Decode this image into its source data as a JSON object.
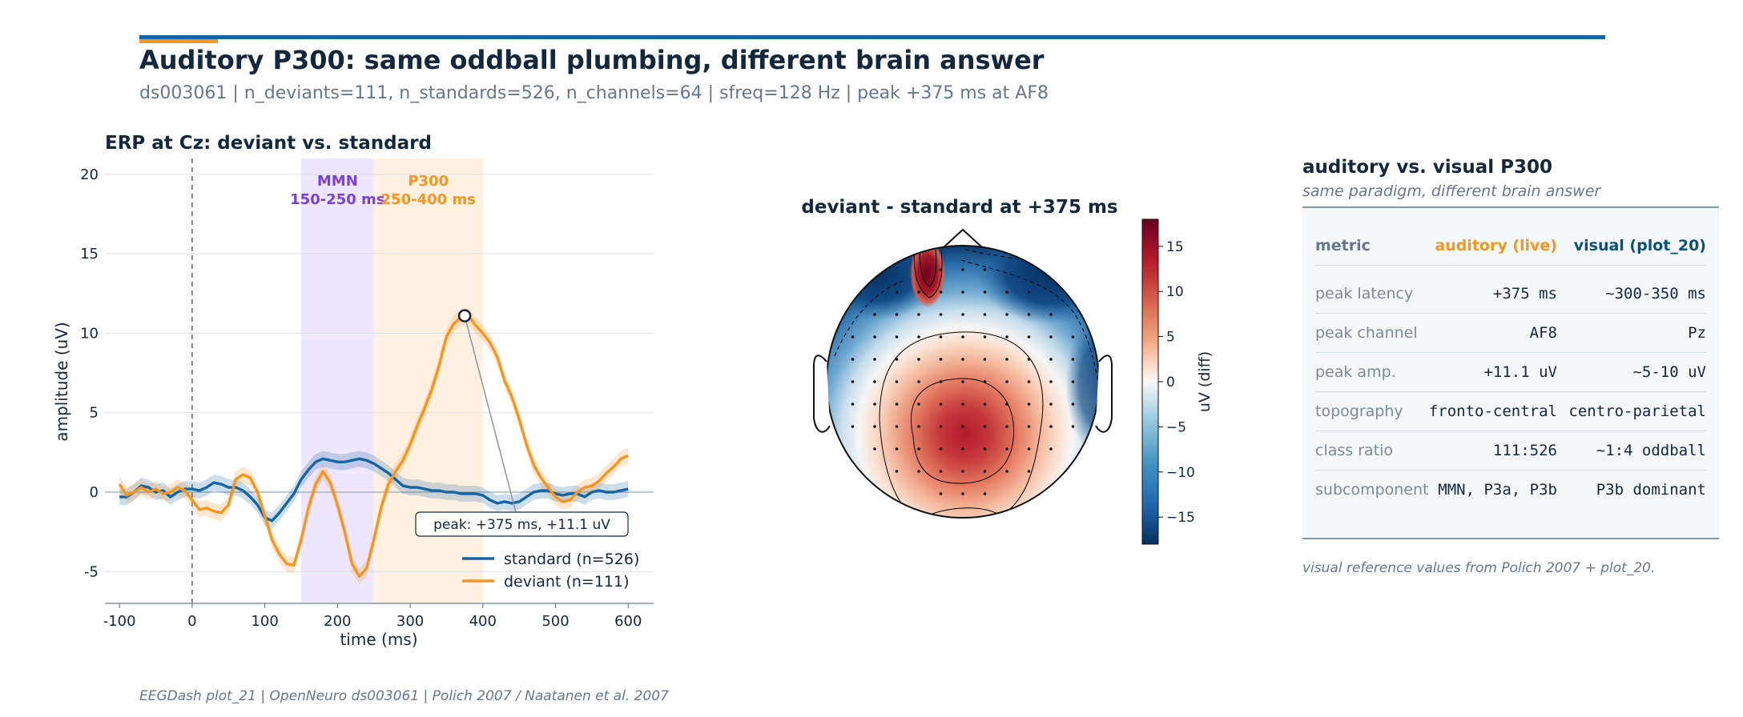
{
  "header": {
    "title": "Auditory P300: same oddball plumbing, different brain answer",
    "subtitle": "ds003061  |  n_deviants=111, n_standards=526, n_channels=64  |  sfreq=128 Hz  |  peak +375 ms at AF8"
  },
  "footer": "EEGDash plot_21 | OpenNeuro ds003061 | Polich 2007 / Naatanen et al. 2007",
  "colors": {
    "standard": "#1565a6",
    "deviant": "#f59623",
    "mmn": "#7a3fe0",
    "accent": "#1565a6"
  },
  "chart_data": [
    {
      "type": "line",
      "title": "ERP at Cz: deviant vs. standard",
      "xlabel": "time (ms)",
      "ylabel": "amplitude (uV)",
      "xlim": [
        -120,
        635
      ],
      "ylim": [
        -7,
        21
      ],
      "xticks": [
        -100,
        0,
        100,
        200,
        300,
        400,
        500,
        600
      ],
      "yticks": [
        -5,
        0,
        5,
        10,
        15,
        20
      ],
      "grid": true,
      "legend": "lower-right",
      "series": [
        {
          "name": "standard (n=526)",
          "x": [
            -100,
            -90,
            -80,
            -70,
            -60,
            -50,
            -40,
            -30,
            -20,
            -10,
            0,
            10,
            20,
            30,
            40,
            50,
            60,
            70,
            80,
            90,
            100,
            110,
            120,
            130,
            140,
            150,
            160,
            170,
            180,
            190,
            200,
            210,
            220,
            230,
            240,
            250,
            260,
            270,
            280,
            290,
            300,
            310,
            320,
            330,
            340,
            350,
            360,
            370,
            380,
            390,
            400,
            410,
            420,
            430,
            440,
            450,
            460,
            470,
            480,
            490,
            500,
            510,
            520,
            530,
            540,
            550,
            560,
            570,
            580,
            590,
            600
          ],
          "y": [
            -0.3,
            -0.3,
            0.0,
            0.4,
            0.3,
            0.0,
            0.1,
            -0.3,
            0.0,
            0.2,
            0.2,
            0.1,
            0.3,
            0.6,
            0.5,
            0.3,
            0.3,
            0.1,
            -0.3,
            -0.8,
            -1.6,
            -1.8,
            -1.3,
            -0.7,
            -0.1,
            0.8,
            1.4,
            1.9,
            2.1,
            2.0,
            1.9,
            1.9,
            2.0,
            2.1,
            2.0,
            1.8,
            1.5,
            1.2,
            0.8,
            0.4,
            0.3,
            0.3,
            0.2,
            0.1,
            0.1,
            0.0,
            0.0,
            -0.1,
            -0.1,
            -0.1,
            -0.2,
            -0.5,
            -0.7,
            -0.6,
            -0.7,
            -0.6,
            -0.3,
            0.0,
            0.1,
            0.1,
            -0.1,
            -0.2,
            -0.1,
            -0.1,
            -0.3,
            0.0,
            0.1,
            0.0,
            0.0,
            0.1,
            0.2
          ]
        },
        {
          "name": "deviant (n=111)",
          "x": [
            -100,
            -90,
            -80,
            -70,
            -60,
            -50,
            -40,
            -30,
            -20,
            -10,
            0,
            10,
            20,
            30,
            40,
            50,
            60,
            70,
            80,
            90,
            100,
            110,
            120,
            130,
            140,
            150,
            160,
            170,
            180,
            190,
            200,
            210,
            220,
            230,
            240,
            250,
            260,
            270,
            280,
            290,
            300,
            310,
            320,
            330,
            340,
            350,
            360,
            370,
            380,
            390,
            400,
            410,
            420,
            430,
            440,
            450,
            460,
            470,
            480,
            490,
            500,
            510,
            520,
            530,
            540,
            550,
            560,
            570,
            580,
            590,
            600
          ],
          "y": [
            0.5,
            -0.2,
            0.0,
            0.3,
            0.0,
            0.2,
            -0.1,
            0.0,
            0.3,
            0.1,
            -0.5,
            -1.1,
            -1.0,
            -1.2,
            -1.3,
            -0.8,
            0.8,
            1.1,
            0.9,
            0.0,
            -1.5,
            -3.0,
            -3.9,
            -4.5,
            -4.6,
            -3.0,
            -1.0,
            0.5,
            1.3,
            0.6,
            -0.8,
            -2.5,
            -4.5,
            -5.3,
            -4.8,
            -3.0,
            -1.0,
            0.5,
            1.3,
            2.0,
            3.0,
            4.2,
            5.3,
            6.5,
            8.0,
            9.8,
            10.6,
            11.0,
            11.1,
            10.5,
            10.0,
            9.4,
            8.5,
            7.0,
            6.0,
            4.6,
            3.0,
            1.7,
            0.9,
            0.3,
            -0.3,
            -0.6,
            -0.5,
            0.0,
            0.3,
            0.4,
            0.7,
            1.2,
            1.6,
            2.1,
            2.3
          ]
        }
      ],
      "windows": [
        {
          "label": "MMN",
          "range_label": "150-250 ms",
          "x0": 150,
          "x1": 250
        },
        {
          "label": "P300",
          "range_label": "250-400 ms",
          "x0": 250,
          "x1": 400
        }
      ],
      "peak": {
        "x": 375,
        "y": 11.1,
        "label": "peak: +375 ms, +11.1 uV"
      }
    },
    {
      "type": "heatmap",
      "title": "deviant - standard at +375 ms",
      "colorbar_label": "uV (diff)",
      "colorbar_ticks": [
        15,
        10,
        5,
        0,
        -5,
        -10,
        -15
      ],
      "colorbar_range": [
        -18,
        18
      ],
      "colormap": "RdBu_r"
    }
  ],
  "table": {
    "title": "auditory vs. visual P300",
    "subtitle": "same paradigm, different brain answer",
    "headers": [
      "metric",
      "auditory (live)",
      "visual (plot_20)"
    ],
    "rows": [
      [
        "peak latency",
        "+375 ms",
        "~300-350 ms"
      ],
      [
        "peak channel",
        "AF8",
        "Pz"
      ],
      [
        "peak amp.",
        "+11.1 uV",
        "~5-10 uV"
      ],
      [
        "topography",
        "fronto-central",
        "centro-parietal"
      ],
      [
        "class ratio",
        "111:526",
        "~1:4 oddball"
      ],
      [
        "subcomponent",
        "MMN, P3a, P3b",
        "P3b dominant"
      ]
    ],
    "note": "visual reference values from Polich 2007 + plot_20."
  }
}
